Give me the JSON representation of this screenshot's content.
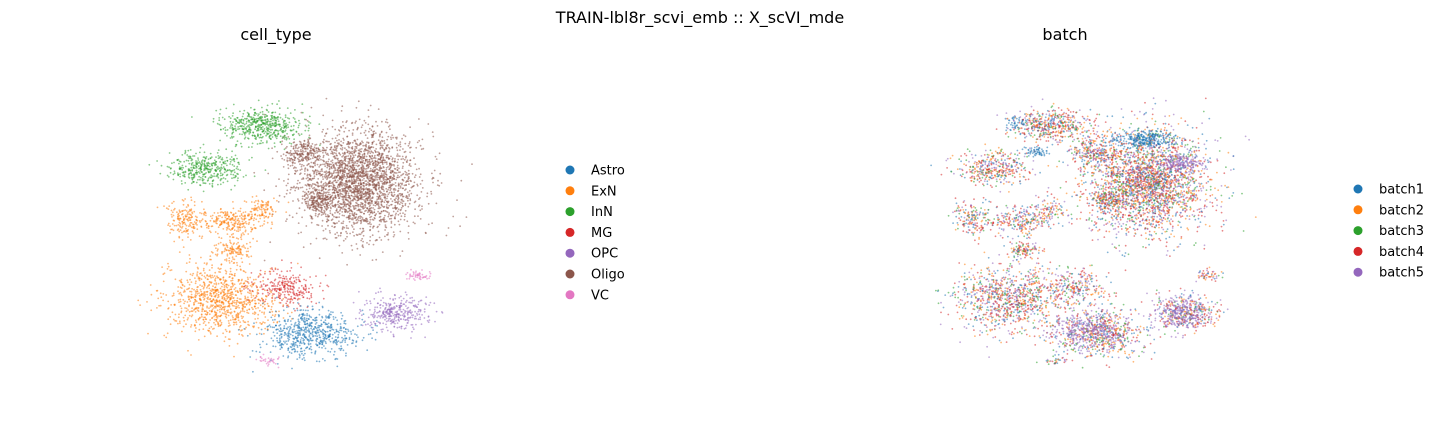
{
  "figure": {
    "suptitle": "TRAIN-lbl8r_scvi_emb :: X_scVI_mde"
  },
  "chart_data": [
    {
      "type": "scatter",
      "title": "cell_type",
      "xlabel": "",
      "ylabel": "",
      "axes_visible": false,
      "grid": false,
      "legend_position": "right",
      "point_size": "tiny",
      "series": [
        {
          "name": "Astro",
          "color": "#1f77b4"
        },
        {
          "name": "ExN",
          "color": "#ff7f0e"
        },
        {
          "name": "InN",
          "color": "#2ca02c"
        },
        {
          "name": "MG",
          "color": "#d62728"
        },
        {
          "name": "OPC",
          "color": "#9467bd"
        },
        {
          "name": "Oligo",
          "color": "#8c564b"
        },
        {
          "name": "VC",
          "color": "#e377c2"
        }
      ],
      "clusters": [
        {
          "series": "Oligo",
          "x": 0.36,
          "y": 0.27,
          "sx": 0.13,
          "sy": 0.15,
          "n": 2600
        },
        {
          "series": "Oligo",
          "x": 0.12,
          "y": 0.44,
          "sx": 0.05,
          "sy": 0.035,
          "n": 220
        },
        {
          "series": "Oligo",
          "x": 0.18,
          "y": 0.16,
          "sx": 0.03,
          "sy": 0.03,
          "n": 150
        },
        {
          "series": "InN",
          "x": -0.06,
          "y": 0.6,
          "sx": 0.09,
          "sy": 0.05,
          "n": 500
        },
        {
          "series": "InN",
          "x": -0.31,
          "y": 0.35,
          "sx": 0.08,
          "sy": 0.05,
          "n": 380
        },
        {
          "series": "ExN",
          "x": -0.4,
          "y": 0.05,
          "sx": 0.04,
          "sy": 0.05,
          "n": 160
        },
        {
          "series": "ExN",
          "x": -0.19,
          "y": 0.04,
          "sx": 0.07,
          "sy": 0.04,
          "n": 250
        },
        {
          "series": "ExN",
          "x": -0.18,
          "y": -0.13,
          "sx": 0.04,
          "sy": 0.025,
          "n": 110
        },
        {
          "series": "ExN",
          "x": -0.25,
          "y": -0.42,
          "sx": 0.12,
          "sy": 0.1,
          "n": 950
        },
        {
          "series": "ExN",
          "x": -0.06,
          "y": 0.11,
          "sx": 0.035,
          "sy": 0.035,
          "n": 90
        },
        {
          "series": "MG",
          "x": 0.05,
          "y": -0.35,
          "sx": 0.07,
          "sy": 0.05,
          "n": 260
        },
        {
          "series": "Astro",
          "x": 0.15,
          "y": -0.62,
          "sx": 0.1,
          "sy": 0.07,
          "n": 620
        },
        {
          "series": "OPC",
          "x": 0.52,
          "y": -0.5,
          "sx": 0.07,
          "sy": 0.05,
          "n": 330
        },
        {
          "series": "VC",
          "x": 0.62,
          "y": -0.28,
          "sx": 0.03,
          "sy": 0.015,
          "n": 50
        },
        {
          "series": "VC",
          "x": -0.04,
          "y": -0.78,
          "sx": 0.025,
          "sy": 0.015,
          "n": 30
        }
      ]
    },
    {
      "type": "scatter",
      "title": "batch",
      "xlabel": "",
      "ylabel": "",
      "axes_visible": false,
      "grid": false,
      "legend_position": "right",
      "point_size": "tiny",
      "series": [
        {
          "name": "batch1",
          "color": "#1f77b4"
        },
        {
          "name": "batch2",
          "color": "#ff7f0e"
        },
        {
          "name": "batch3",
          "color": "#2ca02c"
        },
        {
          "name": "batch4",
          "color": "#d62728"
        },
        {
          "name": "batch5",
          "color": "#9467bd"
        }
      ],
      "clusters": [
        {
          "series": "mixed",
          "x": 0.36,
          "y": 0.27,
          "sx": 0.13,
          "sy": 0.15,
          "n": 2600
        },
        {
          "series": "mixed",
          "x": 0.12,
          "y": 0.44,
          "sx": 0.05,
          "sy": 0.035,
          "n": 220
        },
        {
          "series": "mixed",
          "x": 0.18,
          "y": 0.16,
          "sx": 0.03,
          "sy": 0.03,
          "n": 150
        },
        {
          "series": "mixed",
          "x": -0.06,
          "y": 0.6,
          "sx": 0.09,
          "sy": 0.05,
          "n": 500
        },
        {
          "series": "mixed",
          "x": -0.31,
          "y": 0.35,
          "sx": 0.08,
          "sy": 0.05,
          "n": 380
        },
        {
          "series": "mixed",
          "x": -0.4,
          "y": 0.05,
          "sx": 0.04,
          "sy": 0.05,
          "n": 160
        },
        {
          "series": "mixed",
          "x": -0.19,
          "y": 0.04,
          "sx": 0.07,
          "sy": 0.04,
          "n": 250
        },
        {
          "series": "mixed",
          "x": -0.18,
          "y": -0.13,
          "sx": 0.04,
          "sy": 0.025,
          "n": 110
        },
        {
          "series": "mixed",
          "x": -0.25,
          "y": -0.42,
          "sx": 0.12,
          "sy": 0.1,
          "n": 950
        },
        {
          "series": "mixed",
          "x": -0.06,
          "y": 0.11,
          "sx": 0.035,
          "sy": 0.035,
          "n": 90
        },
        {
          "series": "mixed",
          "x": 0.05,
          "y": -0.35,
          "sx": 0.07,
          "sy": 0.05,
          "n": 260
        },
        {
          "series": "mixed",
          "x": 0.15,
          "y": -0.62,
          "sx": 0.1,
          "sy": 0.07,
          "n": 620
        },
        {
          "series": "mixed",
          "x": 0.52,
          "y": -0.5,
          "sx": 0.07,
          "sy": 0.05,
          "n": 330
        },
        {
          "series": "mixed",
          "x": 0.62,
          "y": -0.28,
          "sx": 0.03,
          "sy": 0.015,
          "n": 50
        },
        {
          "series": "mixed",
          "x": -0.04,
          "y": -0.78,
          "sx": 0.025,
          "sy": 0.015,
          "n": 30
        },
        {
          "series": "batch1",
          "x": 0.34,
          "y": 0.52,
          "sx": 0.07,
          "sy": 0.025,
          "n": 300
        },
        {
          "series": "batch1",
          "x": -0.12,
          "y": 0.45,
          "sx": 0.025,
          "sy": 0.02,
          "n": 60
        },
        {
          "series": "batch1",
          "x": -0.22,
          "y": 0.61,
          "sx": 0.02,
          "sy": 0.02,
          "n": 40
        },
        {
          "series": "batch5",
          "x": 0.5,
          "y": 0.38,
          "sx": 0.05,
          "sy": 0.03,
          "n": 200
        },
        {
          "series": "batch5",
          "x": 0.5,
          "y": -0.5,
          "sx": 0.06,
          "sy": 0.05,
          "n": 250
        },
        {
          "series": "batch5",
          "x": 0.1,
          "y": -0.6,
          "sx": 0.08,
          "sy": 0.05,
          "n": 300
        }
      ]
    }
  ]
}
